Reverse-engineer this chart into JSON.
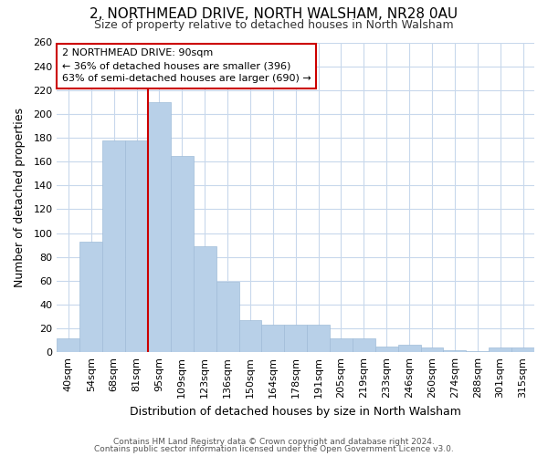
{
  "title": "2, NORTHMEAD DRIVE, NORTH WALSHAM, NR28 0AU",
  "subtitle": "Size of property relative to detached houses in North Walsham",
  "xlabel": "Distribution of detached houses by size in North Walsham",
  "ylabel": "Number of detached properties",
  "categories": [
    "40sqm",
    "54sqm",
    "68sqm",
    "81sqm",
    "95sqm",
    "109sqm",
    "123sqm",
    "136sqm",
    "150sqm",
    "164sqm",
    "178sqm",
    "191sqm",
    "205sqm",
    "219sqm",
    "233sqm",
    "246sqm",
    "260sqm",
    "274sqm",
    "288sqm",
    "301sqm",
    "315sqm"
  ],
  "values": [
    12,
    93,
    178,
    178,
    210,
    165,
    89,
    59,
    27,
    23,
    23,
    23,
    12,
    12,
    5,
    6,
    4,
    2,
    1,
    4,
    4
  ],
  "bar_color": "#b8d0e8",
  "bar_edge_color": "#a0bcd8",
  "grid_color": "#c8d8ec",
  "property_line_color": "#cc0000",
  "annotation_line1": "2 NORTHMEAD DRIVE: 90sqm",
  "annotation_line2": "← 36% of detached houses are smaller (396)",
  "annotation_line3": "63% of semi-detached houses are larger (690) →",
  "annotation_box_color": "#ffffff",
  "annotation_border_color": "#cc0000",
  "ylim": [
    0,
    260
  ],
  "yticks": [
    0,
    20,
    40,
    60,
    80,
    100,
    120,
    140,
    160,
    180,
    200,
    220,
    240,
    260
  ],
  "footer1": "Contains HM Land Registry data © Crown copyright and database right 2024.",
  "footer2": "Contains public sector information licensed under the Open Government Licence v3.0.",
  "background_color": "#ffffff",
  "plot_bg_color": "#ffffff"
}
